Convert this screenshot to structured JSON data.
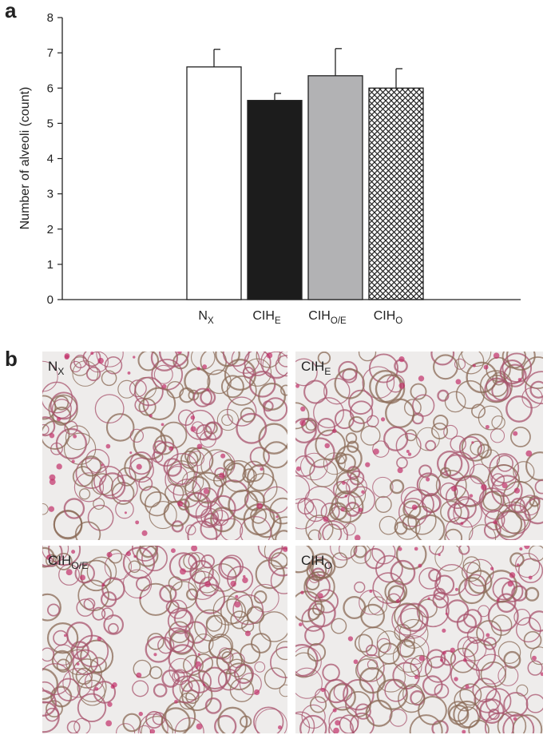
{
  "chart_data": {
    "type": "bar",
    "panel_label": "a",
    "ylabel": "Number of alveoli (count)",
    "categories": [
      [
        "N",
        "X"
      ],
      [
        "CIH",
        "E"
      ],
      [
        "CIH",
        "O/E"
      ],
      [
        "CIH",
        "O"
      ]
    ],
    "values": [
      6.6,
      5.65,
      6.35,
      6.0
    ],
    "errors": [
      0.5,
      0.2,
      0.77,
      0.55
    ],
    "colors": [
      "#ffffff",
      "#1c1c1c",
      "#b2b2b4",
      "#ffffff"
    ],
    "hatch": [
      false,
      false,
      false,
      true
    ],
    "ylim": [
      0,
      8
    ],
    "yticks": [
      0,
      1,
      2,
      3,
      4,
      5,
      6,
      7,
      8
    ]
  },
  "panel_b": {
    "panel_label": "b",
    "images": [
      {
        "label": [
          "N",
          "X"
        ]
      },
      {
        "label": [
          "CIH",
          "E"
        ]
      },
      {
        "label": [
          "CIH",
          "O/E"
        ]
      },
      {
        "label": [
          "CIH",
          "O"
        ]
      }
    ]
  }
}
